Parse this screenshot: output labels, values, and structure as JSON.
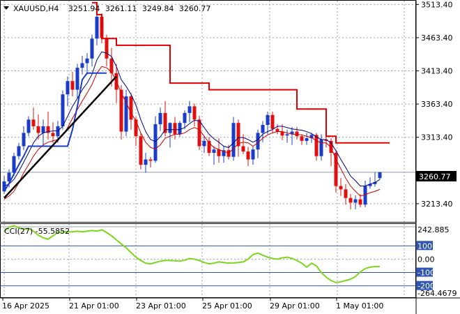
{
  "header": {
    "symbol": "XAUUSD,H4",
    "open": "3251.94",
    "high": "3261.11",
    "low": "3249.84",
    "close": "3260.77"
  },
  "price_axis": {
    "ticks": [
      "3513.40",
      "3463.40",
      "3413.40",
      "3363.40",
      "3313.40",
      "3213.40"
    ],
    "tick_values": [
      3513.4,
      3463.4,
      3413.4,
      3363.4,
      3313.4,
      3213.4
    ],
    "current_price_label": "3260.77",
    "current_price": 3260.77
  },
  "indicator": {
    "label": "CCI(27) -55.5852",
    "axis_labels": [
      "242.885",
      "100",
      "0.00",
      "-100",
      "-200",
      "-264.4679"
    ],
    "axis_values": [
      242.885,
      100,
      0,
      -100,
      -200,
      -264.4679
    ],
    "highlighted_levels": [
      "100",
      "-100",
      "-200"
    ]
  },
  "time_axis": {
    "labels": [
      "16 Apr 2025",
      "21 Apr 01:00",
      "23 Apr 01:00",
      "25 Apr 01:00",
      "29 Apr 01:00",
      "1 May 01:00"
    ]
  },
  "colors": {
    "bull": "#1a3cc8",
    "bear": "#e01010",
    "resistance": "#e00000",
    "ma_fast": "#000080",
    "ma_slow": "#cc0000",
    "trend": "#000000",
    "cci": "#7cd61c",
    "level_highlight": "#2f57b2"
  },
  "chart_data": {
    "type": "candlestick",
    "symbol": "XAUUSD",
    "timeframe": "H4",
    "candles": [
      [
        3232,
        3255,
        3228,
        3247
      ],
      [
        3247,
        3265,
        3238,
        3260
      ],
      [
        3260,
        3290,
        3255,
        3285
      ],
      [
        3285,
        3305,
        3280,
        3300
      ],
      [
        3300,
        3330,
        3294,
        3320
      ],
      [
        3320,
        3345,
        3315,
        3340
      ],
      [
        3340,
        3358,
        3325,
        3330
      ],
      [
        3330,
        3348,
        3310,
        3320
      ],
      [
        3320,
        3340,
        3300,
        3330
      ],
      [
        3330,
        3352,
        3310,
        3320
      ],
      [
        3320,
        3336,
        3305,
        3315
      ],
      [
        3315,
        3338,
        3305,
        3330
      ],
      [
        3330,
        3384,
        3325,
        3378
      ],
      [
        3378,
        3405,
        3360,
        3398
      ],
      [
        3398,
        3412,
        3375,
        3385
      ],
      [
        3385,
        3424,
        3372,
        3418
      ],
      [
        3418,
        3436,
        3408,
        3425
      ],
      [
        3425,
        3440,
        3408,
        3432
      ],
      [
        3432,
        3468,
        3420,
        3462
      ],
      [
        3462,
        3500,
        3452,
        3495
      ],
      [
        3495,
        3500,
        3455,
        3463
      ],
      [
        3463,
        3468,
        3420,
        3432
      ],
      [
        3432,
        3448,
        3390,
        3410
      ],
      [
        3410,
        3424,
        3365,
        3385
      ],
      [
        3385,
        3392,
        3310,
        3322
      ],
      [
        3322,
        3385,
        3315,
        3375
      ],
      [
        3375,
        3380,
        3325,
        3340
      ],
      [
        3340,
        3344,
        3300,
        3315
      ],
      [
        3315,
        3320,
        3265,
        3272
      ],
      [
        3272,
        3290,
        3260,
        3280
      ],
      [
        3280,
        3284,
        3268,
        3278
      ],
      [
        3278,
        3345,
        3275,
        3333
      ],
      [
        3333,
        3358,
        3323,
        3350
      ],
      [
        3350,
        3368,
        3315,
        3320
      ],
      [
        3320,
        3336,
        3298,
        3335
      ],
      [
        3335,
        3344,
        3310,
        3318
      ],
      [
        3318,
        3338,
        3314,
        3335
      ],
      [
        3335,
        3354,
        3326,
        3350
      ],
      [
        3350,
        3368,
        3336,
        3360
      ],
      [
        3360,
        3364,
        3330,
        3340
      ],
      [
        3340,
        3346,
        3294,
        3300
      ],
      [
        3300,
        3315,
        3290,
        3308
      ],
      [
        3308,
        3314,
        3285,
        3290
      ],
      [
        3290,
        3300,
        3272,
        3295
      ],
      [
        3295,
        3312,
        3275,
        3285
      ],
      [
        3285,
        3300,
        3275,
        3294
      ],
      [
        3294,
        3302,
        3280,
        3284
      ],
      [
        3284,
        3344,
        3278,
        3335
      ],
      [
        3335,
        3340,
        3284,
        3300
      ],
      [
        3300,
        3318,
        3288,
        3292
      ],
      [
        3292,
        3299,
        3270,
        3280
      ],
      [
        3280,
        3300,
        3272,
        3295
      ],
      [
        3295,
        3325,
        3282,
        3320
      ],
      [
        3320,
        3338,
        3306,
        3332
      ],
      [
        3332,
        3352,
        3318,
        3347
      ],
      [
        3347,
        3352,
        3320,
        3326
      ],
      [
        3326,
        3333,
        3318,
        3322
      ],
      [
        3322,
        3333,
        3309,
        3316
      ],
      [
        3316,
        3325,
        3305,
        3318
      ],
      [
        3318,
        3329,
        3302,
        3322
      ],
      [
        3322,
        3329,
        3310,
        3315
      ],
      [
        3315,
        3318,
        3302,
        3308
      ],
      [
        3308,
        3320,
        3302,
        3312
      ],
      [
        3312,
        3320,
        3305,
        3317
      ],
      [
        3317,
        3320,
        3278,
        3285
      ],
      [
        3285,
        3318,
        3278,
        3310
      ],
      [
        3310,
        3315,
        3298,
        3308
      ],
      [
        3308,
        3312,
        3270,
        3290
      ],
      [
        3290,
        3295,
        3230,
        3240
      ],
      [
        3240,
        3252,
        3225,
        3235
      ],
      [
        3235,
        3243,
        3212,
        3222
      ],
      [
        3222,
        3228,
        3205,
        3215
      ],
      [
        3215,
        3226,
        3205,
        3220
      ],
      [
        3220,
        3228,
        3208,
        3212
      ],
      [
        3212,
        3248,
        3208,
        3240
      ],
      [
        3240,
        3253,
        3236,
        3243
      ],
      [
        3243,
        3261,
        3239,
        3246
      ],
      [
        3251.94,
        3261.11,
        3249.84,
        3260.77
      ]
    ],
    "resistance_steps": [
      [
        3516,
        3498,
        3462,
        3462,
        3462,
        3452,
        3452,
        3452,
        3452,
        3452,
        3452,
        3452,
        3452,
        3452,
        3452,
        3452,
        3395,
        3395,
        3395,
        3395,
        3395,
        3395,
        3395,
        3395,
        3385,
        3385,
        3385,
        3385,
        3385,
        3385,
        3385,
        3385,
        3385,
        3385,
        3385,
        3385,
        3385,
        3385,
        3385,
        3385,
        3385,
        3385,
        3356,
        3356,
        3356,
        3356,
        3356,
        3356,
        3315,
        3315,
        3305,
        3305,
        3305,
        3305,
        3305,
        3305,
        3305,
        3305,
        3305,
        3305,
        3305
      ]
    ],
    "resistance_start_index": 18,
    "ma_fast": [
      3240,
      3243,
      3250,
      3262,
      3276,
      3290,
      3305,
      3315,
      3320,
      3322,
      3323,
      3323,
      3330,
      3345,
      3360,
      3372,
      3385,
      3395,
      3408,
      3430,
      3442,
      3440,
      3435,
      3420,
      3400,
      3390,
      3378,
      3362,
      3340,
      3322,
      3310,
      3307,
      3314,
      3325,
      3325,
      3325,
      3325,
      3328,
      3334,
      3339,
      3338,
      3328,
      3318,
      3311,
      3306,
      3300,
      3298,
      3305,
      3313,
      3313,
      3310,
      3306,
      3310,
      3318,
      3322,
      3325,
      3330,
      3330,
      3328,
      3326,
      3325,
      3324,
      3322,
      3319,
      3314,
      3310,
      3310,
      3305,
      3293,
      3280,
      3268,
      3255,
      3248,
      3240,
      3240,
      3243,
      3245,
      3250
    ],
    "ma_slow": [
      3220,
      3225,
      3232,
      3245,
      3260,
      3272,
      3285,
      3295,
      3302,
      3306,
      3308,
      3310,
      3316,
      3328,
      3342,
      3355,
      3368,
      3380,
      3393,
      3410,
      3420,
      3418,
      3412,
      3398,
      3380,
      3366,
      3350,
      3338,
      3320,
      3306,
      3298,
      3296,
      3302,
      3312,
      3315,
      3318,
      3318,
      3320,
      3325,
      3328,
      3325,
      3315,
      3305,
      3298,
      3295,
      3292,
      3290,
      3296,
      3304,
      3306,
      3305,
      3300,
      3305,
      3312,
      3317,
      3320,
      3322,
      3322,
      3320,
      3318,
      3318,
      3317,
      3315,
      3313,
      3308,
      3305,
      3305,
      3298,
      3280,
      3266,
      3252,
      3240,
      3232,
      3225,
      3227,
      3230,
      3232,
      3235
    ],
    "trend_line": {
      "from": [
        0,
        3222
      ],
      "to": [
        23,
        3405
      ]
    },
    "step_line": [
      3232,
      3244,
      3258,
      3272,
      3285,
      3300,
      3300,
      3300,
      3300,
      3300,
      3300,
      3300,
      3300,
      3300,
      3325,
      3360,
      3400,
      3410,
      3410,
      3410,
      3410,
      3410
    ],
    "cci": [
      210,
      240,
      250,
      235,
      225,
      230,
      210,
      180,
      160,
      150,
      175,
      200,
      205,
      205,
      205,
      210,
      205,
      210,
      215,
      210,
      220,
      200,
      175,
      145,
      115,
      85,
      50,
      15,
      -10,
      -30,
      -35,
      -25,
      -15,
      -10,
      -10,
      -12,
      -15,
      -8,
      5,
      0,
      -10,
      -25,
      -35,
      -30,
      -20,
      -25,
      -30,
      -28,
      -25,
      -20,
      0,
      35,
      45,
      30,
      15,
      5,
      0,
      10,
      15,
      5,
      -10,
      -30,
      -60,
      -30,
      -50,
      -100,
      -135,
      -160,
      -175,
      -170,
      -160,
      -150,
      -130,
      -95,
      -70,
      -60,
      -55,
      -55.5852
    ],
    "price_range": [
      3186,
      3518
    ],
    "cci_range": [
      -264.4679,
      242.885
    ]
  }
}
